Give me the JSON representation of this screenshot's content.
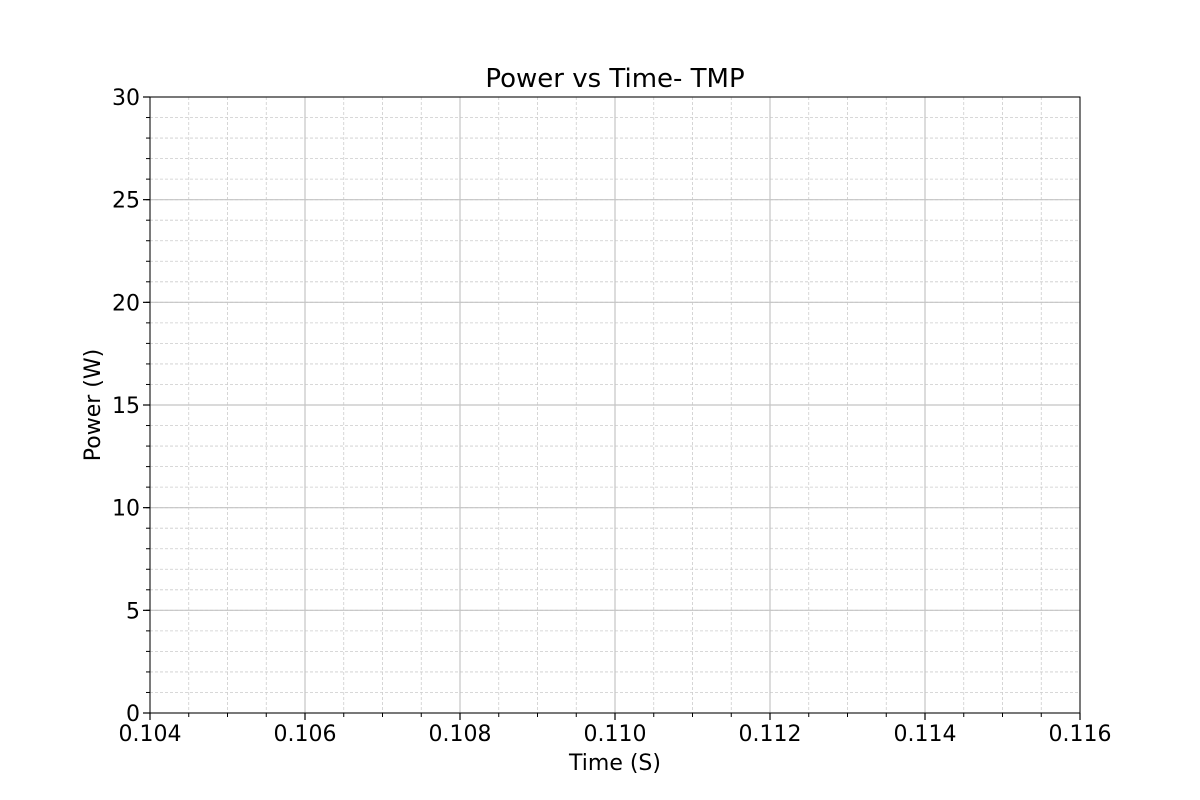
{
  "chart_data": {
    "type": "line",
    "title": "Power vs Time- TMP",
    "xlabel": "Time (S)",
    "ylabel": "Power (W)",
    "xlim": [
      0.104,
      0.116
    ],
    "ylim": [
      0,
      30
    ],
    "x_ticks": [
      "0.104",
      "0.106",
      "0.108",
      "0.110",
      "0.112",
      "0.114",
      "0.116"
    ],
    "x_tick_values": [
      0.104,
      0.106,
      0.108,
      0.11,
      0.112,
      0.114,
      0.116
    ],
    "y_ticks": [
      "0",
      "5",
      "10",
      "15",
      "20",
      "25",
      "30"
    ],
    "y_tick_values": [
      0,
      5,
      10,
      15,
      20,
      25,
      30
    ],
    "x_minor_step": 0.0005,
    "y_minor_step": 1,
    "grid": true,
    "minor_grid": true,
    "series": []
  }
}
